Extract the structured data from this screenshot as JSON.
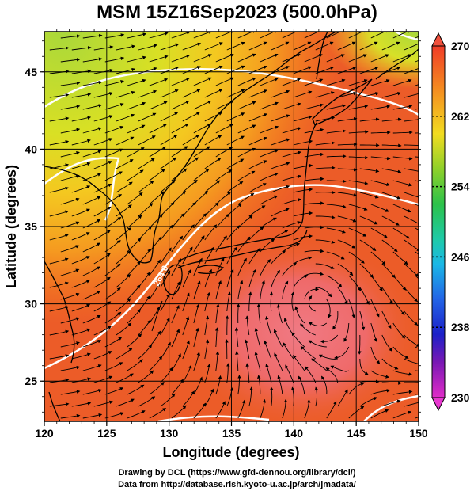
{
  "title": "MSM 15Z16Sep2023 (500.0hPa)",
  "xaxis": {
    "label": "Longitude (degrees)",
    "range": [
      120,
      150
    ],
    "ticks": [
      "120",
      "125",
      "130",
      "135",
      "140",
      "145",
      "150"
    ]
  },
  "yaxis": {
    "label": "Latitude  (degrees)",
    "range": [
      22.4,
      47.6
    ],
    "ticks": [
      "25",
      "30",
      "35",
      "40",
      "45"
    ]
  },
  "colorbar": {
    "range": [
      230,
      270
    ],
    "labels": [
      "270",
      "262",
      "254",
      "246",
      "238",
      "230"
    ]
  },
  "contour_label": "264.0",
  "colors": {
    "warm_core": "#f0707a",
    "warm": "#ec5e2a",
    "mid": "#f4761c",
    "cool": "#d9e024",
    "cold": "#82d02c"
  },
  "credits": {
    "line1": "Drawing by DCL (https://www.gfd-dennou.org/library/dcl/)",
    "line2": "Data from http://database.rish.kyoto-u.ac.jp/arch/jmadata/"
  }
}
